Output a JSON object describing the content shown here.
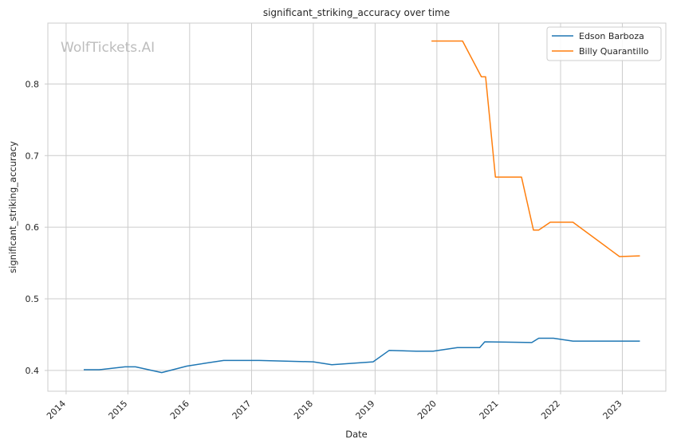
{
  "chart_data": {
    "type": "line",
    "title": "significant_striking_accuracy over time",
    "xlabel": "Date",
    "ylabel": "significant_striking_accuracy",
    "watermark": "WolfTickets.AI",
    "xlim": [
      "2013-09-15",
      "2023-09-15"
    ],
    "ylim": [
      0.371,
      0.885
    ],
    "x_ticks": [
      "2014",
      "2015",
      "2016",
      "2017",
      "2018",
      "2019",
      "2020",
      "2021",
      "2022",
      "2023"
    ],
    "y_ticks": [
      "0.4",
      "0.5",
      "0.6",
      "0.7",
      "0.8"
    ],
    "grid": true,
    "legend_position": "top-right",
    "series": [
      {
        "name": "Edson Barboza",
        "color": "#1f77b4",
        "points": [
          [
            "2014-04-15",
            0.401
          ],
          [
            "2014-07-15",
            0.401
          ],
          [
            "2014-12-15",
            0.405
          ],
          [
            "2015-02-15",
            0.405
          ],
          [
            "2015-07-20",
            0.397
          ],
          [
            "2015-12-15",
            0.406
          ],
          [
            "2016-04-01",
            0.41
          ],
          [
            "2016-07-20",
            0.414
          ],
          [
            "2017-02-15",
            0.414
          ],
          [
            "2018-01-01",
            0.412
          ],
          [
            "2018-04-20",
            0.408
          ],
          [
            "2018-12-20",
            0.412
          ],
          [
            "2019-03-25",
            0.428
          ],
          [
            "2019-09-01",
            0.427
          ],
          [
            "2019-12-10",
            0.427
          ],
          [
            "2020-05-01",
            0.432
          ],
          [
            "2020-09-10",
            0.432
          ],
          [
            "2020-10-10",
            0.44
          ],
          [
            "2021-07-15",
            0.439
          ],
          [
            "2021-08-25",
            0.445
          ],
          [
            "2021-11-20",
            0.445
          ],
          [
            "2022-03-15",
            0.441
          ],
          [
            "2022-12-15",
            0.441
          ],
          [
            "2023-04-15",
            0.441
          ]
        ]
      },
      {
        "name": "Billy Quarantillo",
        "color": "#ff7f0e",
        "points": [
          [
            "2019-11-30",
            0.86
          ],
          [
            "2020-06-01",
            0.86
          ],
          [
            "2020-09-20",
            0.81
          ],
          [
            "2020-10-15",
            0.81
          ],
          [
            "2020-12-12",
            0.67
          ],
          [
            "2021-05-15",
            0.67
          ],
          [
            "2021-07-25",
            0.596
          ],
          [
            "2021-08-25",
            0.596
          ],
          [
            "2021-11-01",
            0.607
          ],
          [
            "2022-03-15",
            0.607
          ],
          [
            "2022-12-15",
            0.559
          ],
          [
            "2023-04-15",
            0.56
          ]
        ]
      }
    ]
  }
}
